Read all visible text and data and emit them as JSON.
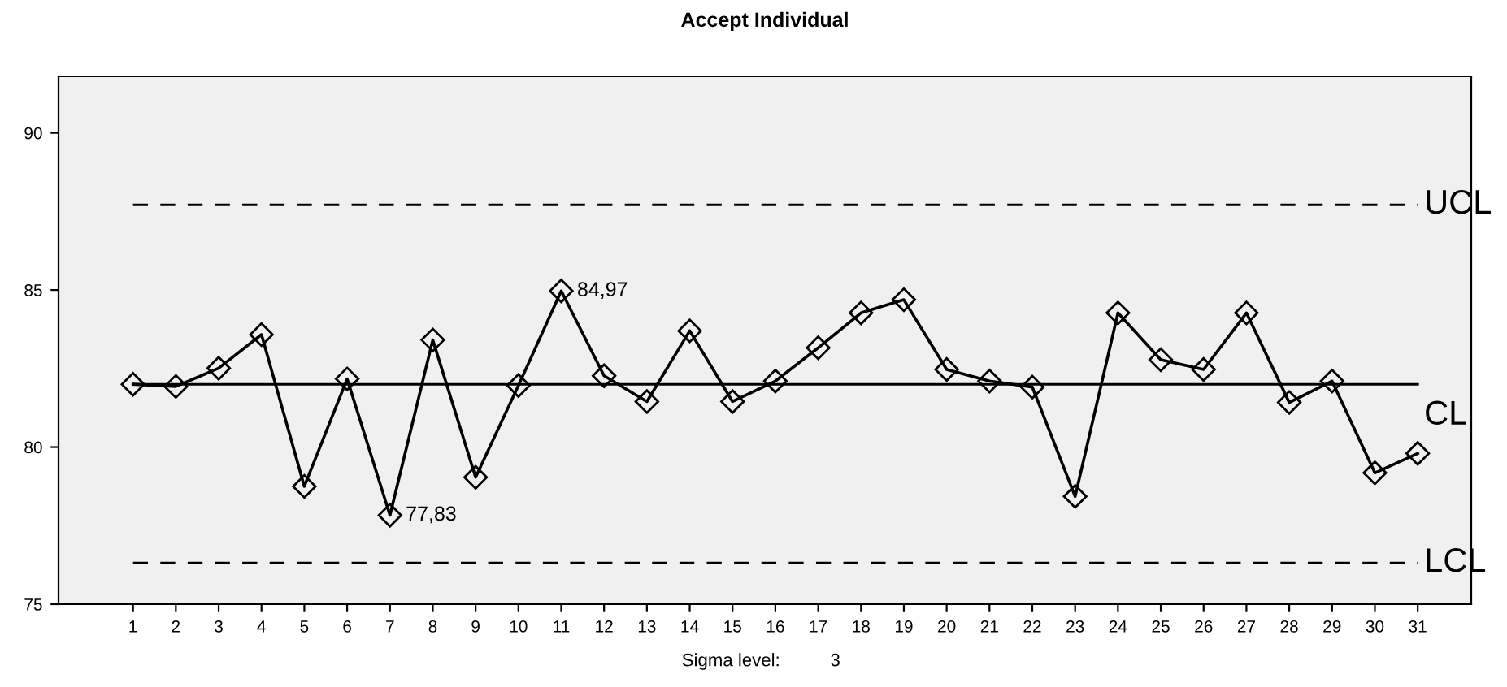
{
  "chart_data": {
    "type": "line",
    "title": "Accept Individual",
    "categories": [
      "1",
      "2",
      "3",
      "4",
      "5",
      "6",
      "7",
      "8",
      "9",
      "10",
      "11",
      "12",
      "13",
      "14",
      "15",
      "16",
      "17",
      "18",
      "19",
      "20",
      "21",
      "22",
      "23",
      "24",
      "25",
      "26",
      "27",
      "28",
      "29",
      "30",
      "31"
    ],
    "series": [
      {
        "color": "#000000",
        "values": [
          82.0,
          81.93,
          82.51,
          83.58,
          78.75,
          82.17,
          77.83,
          83.41,
          79.04,
          81.96,
          84.97,
          82.27,
          81.45,
          83.7,
          81.45,
          82.1,
          83.16,
          84.27,
          84.69,
          82.47,
          82.1,
          81.91,
          78.43,
          84.27,
          82.78,
          82.47,
          84.27,
          81.42,
          82.1,
          79.18,
          79.8
        ]
      }
    ],
    "ylim": [
      75,
      91.8
    ],
    "yticks": [
      75,
      80,
      85,
      90
    ],
    "marker": "diamond",
    "line_style": "solid",
    "grid": false,
    "legend": false,
    "ref_lines": [
      {
        "axis": "y",
        "value": 87.71,
        "label": "UCL",
        "line_style": "dashed",
        "color": "#000000"
      },
      {
        "axis": "y",
        "value": 82.0,
        "label": "CL",
        "line_style": "solid",
        "color": "#000000"
      },
      {
        "axis": "y",
        "value": 76.31,
        "label": "LCL",
        "line_style": "dashed",
        "color": "#000000"
      }
    ],
    "annotations": [
      {
        "text": "84,97",
        "x": "11",
        "y": 84.97
      },
      {
        "text": "77,83",
        "x": "7",
        "y": 77.83
      },
      "Sigma level:          3"
    ]
  }
}
